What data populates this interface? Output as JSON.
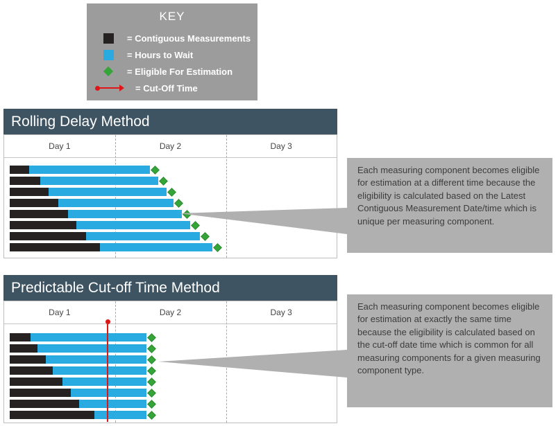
{
  "key": {
    "title": "KEY",
    "items": [
      {
        "icon": "contiguous-measurements-swatch",
        "label": "= Contiguous Measurements"
      },
      {
        "icon": "hours-to-wait-swatch",
        "label": "= Hours to Wait"
      },
      {
        "icon": "eligible-diamond",
        "label": "= Eligible For Estimation"
      },
      {
        "icon": "cutoff-time-line",
        "label": "= Cut-Off Time"
      }
    ]
  },
  "sections": [
    {
      "title": "Rolling Delay Method",
      "days": [
        "Day 1",
        "Day 2",
        "Day 3"
      ],
      "callout": "Each measuring component becomes eligible for estimation at a different time because the eligibility is calculated based on the Latest Contiguous Measurement Date/time which is unique per measuring component.",
      "bars": [
        {
          "black": 28,
          "blue": 174
        },
        {
          "black": 44,
          "blue": 170
        },
        {
          "black": 56,
          "blue": 170
        },
        {
          "black": 70,
          "blue": 166
        },
        {
          "black": 84,
          "blue": 164
        },
        {
          "black": 96,
          "blue": 164
        },
        {
          "black": 110,
          "blue": 164
        },
        {
          "black": 130,
          "blue": 162
        }
      ]
    },
    {
      "title": "Predictable Cut-off Time Method",
      "days": [
        "Day 1",
        "Day 2",
        "Day 3"
      ],
      "callout": "Each measuring component becomes eligible for estimation at exactly the same time because the eligibility is calculated based on the cut-off date time which is common for all measuring components for a given measuring component type.",
      "bars": [
        {
          "black": 30,
          "blue": 167
        },
        {
          "black": 40,
          "blue": 157
        },
        {
          "black": 52,
          "blue": 145
        },
        {
          "black": 62,
          "blue": 135
        },
        {
          "black": 76,
          "blue": 121
        },
        {
          "black": 88,
          "blue": 109
        },
        {
          "black": 100,
          "blue": 97
        },
        {
          "black": 122,
          "blue": 75
        }
      ],
      "has_cutoff_line": true
    }
  ],
  "colors": {
    "header_bg": "#3e5462",
    "key_bg": "#9c9c9c",
    "callout_bg": "#b0b0b0",
    "bar_black": "#262221",
    "bar_blue": "#29abe2",
    "diamond_green": "#35a539",
    "cutoff_red": "#e01616"
  }
}
